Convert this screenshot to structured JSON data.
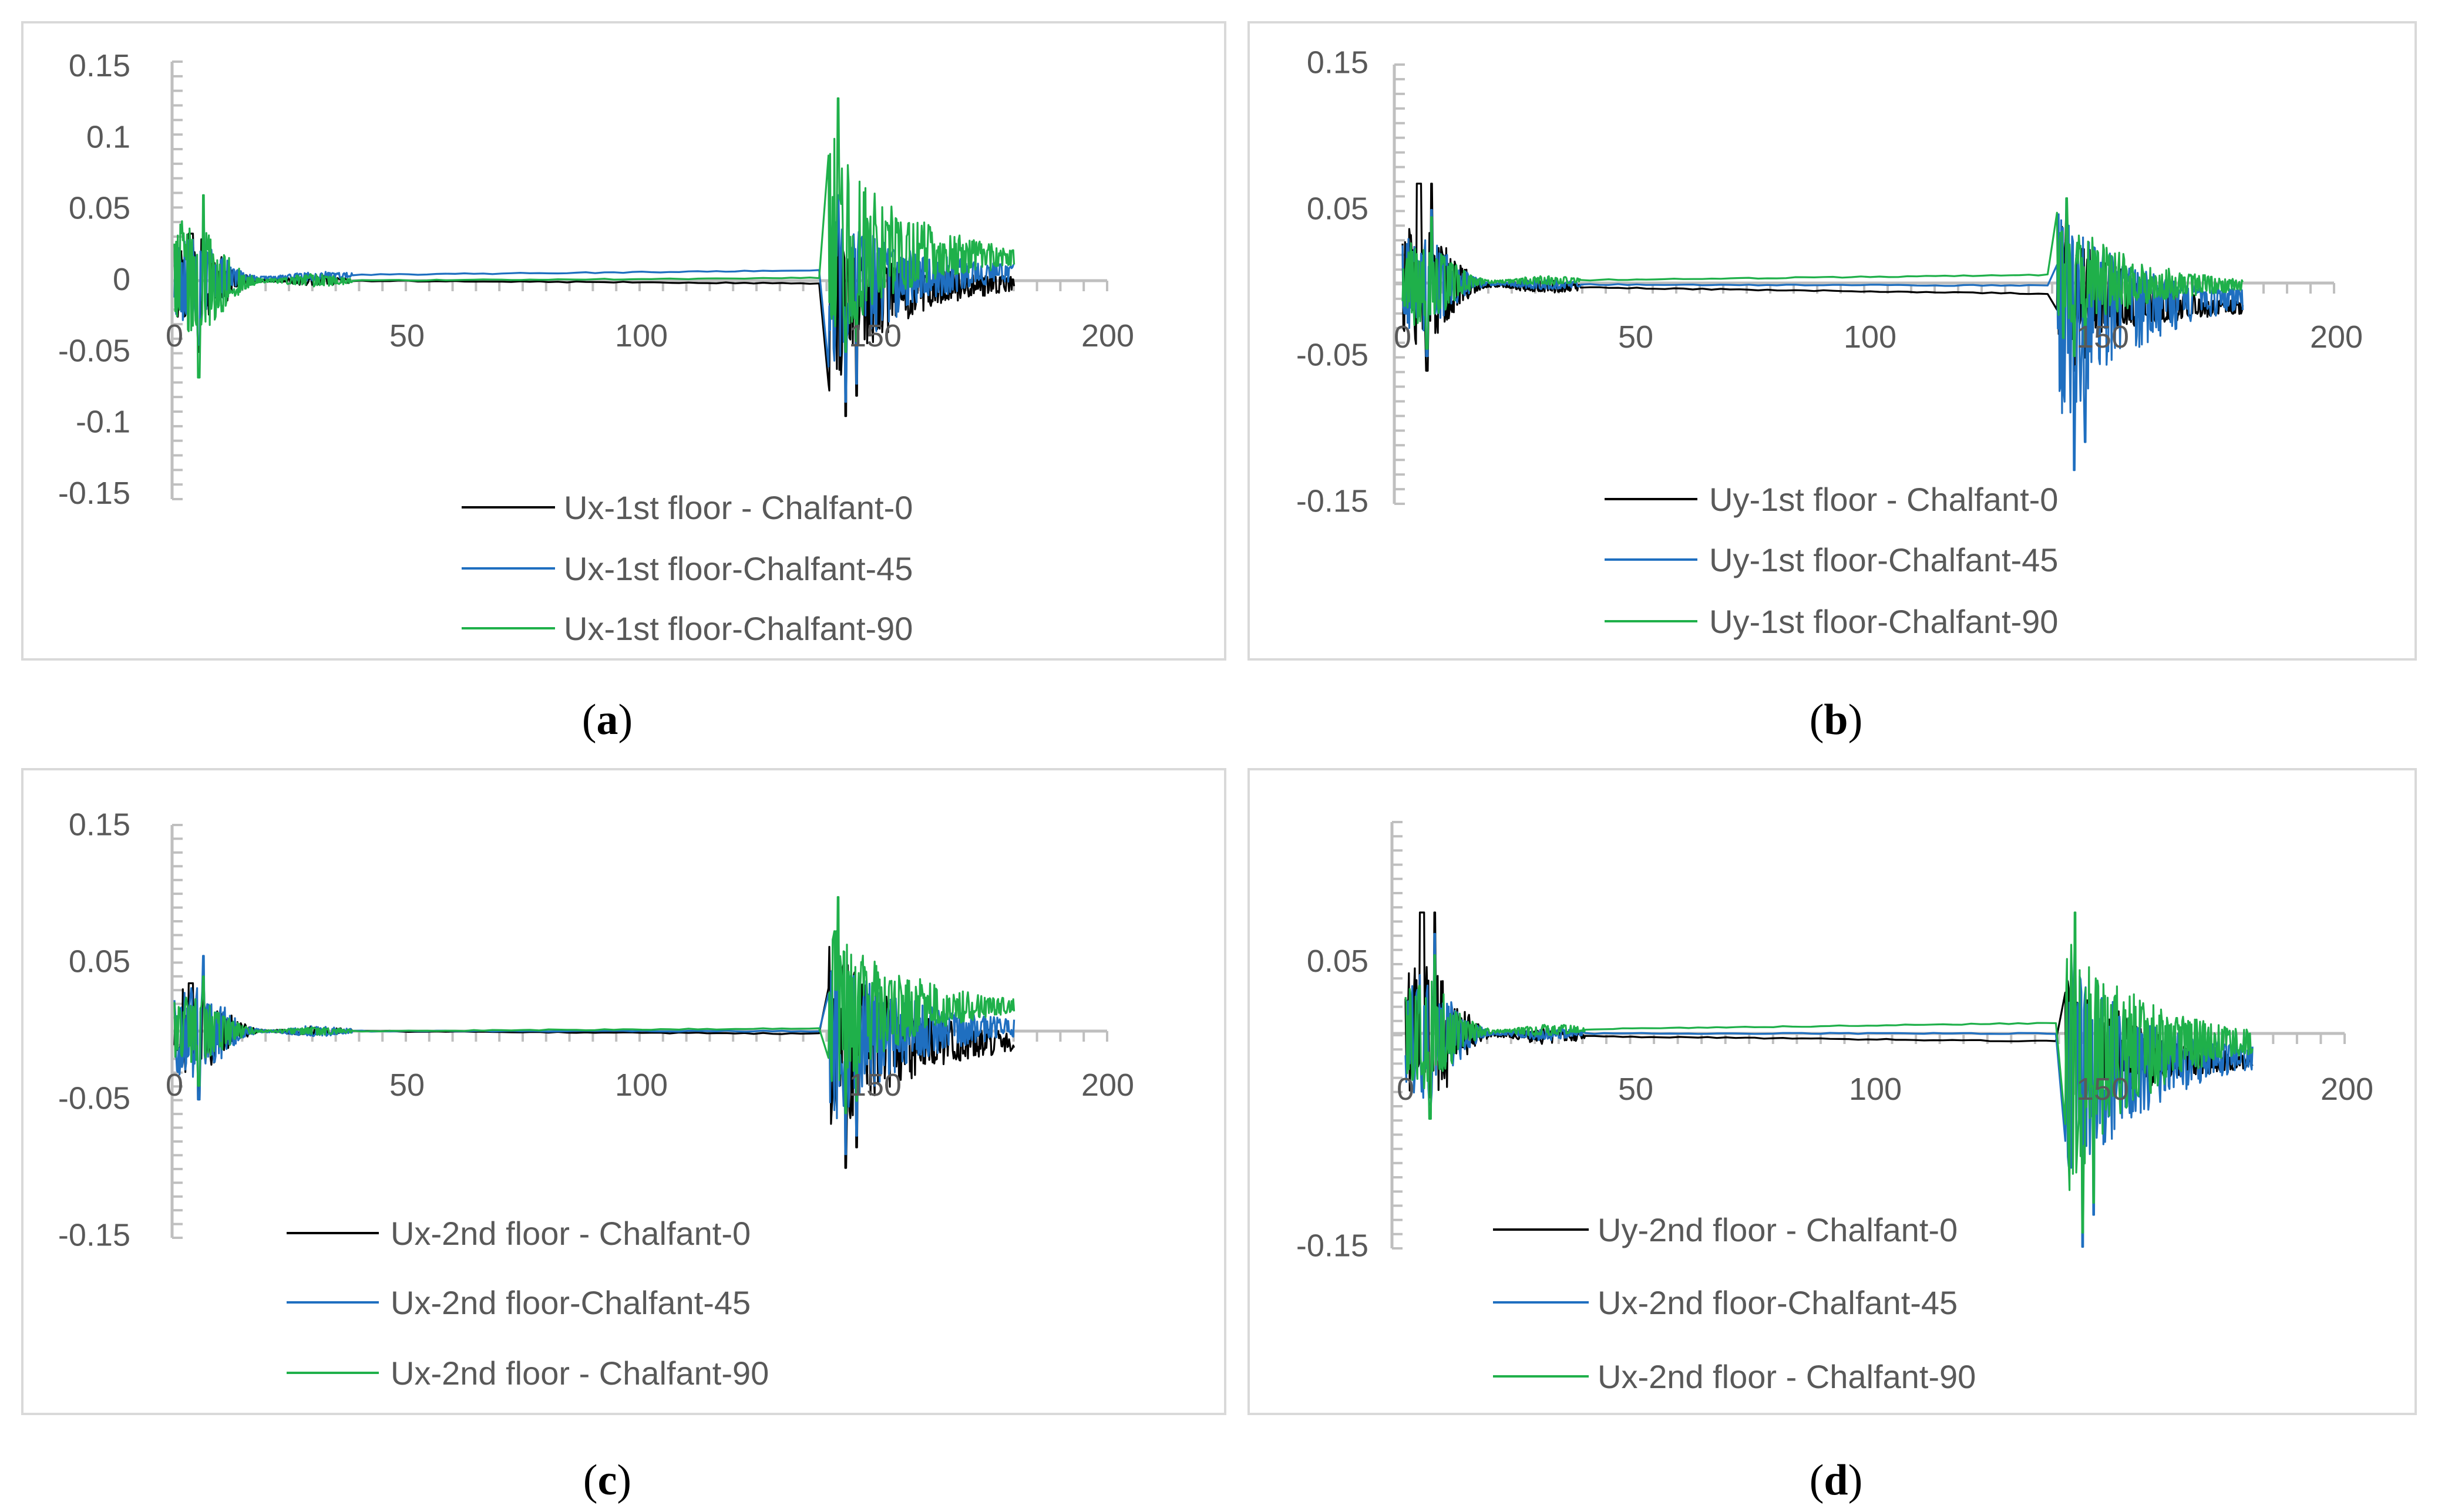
{
  "colors": {
    "black": "#000000",
    "blue": "#1f6fc0",
    "green": "#1fb04a",
    "axis": "#bfbfbf",
    "text": "#595959",
    "frame": "#d9d9d9"
  },
  "chart_data": [
    {
      "id": "a",
      "type": "line",
      "caption": {
        "open": "(",
        "letter": "a",
        "close": ")"
      },
      "xlim": [
        0,
        200
      ],
      "ylim": [
        -0.15,
        0.15
      ],
      "x_ticks": [
        "0",
        "50",
        "100",
        "150",
        "200"
      ],
      "x_tick_values": [
        0,
        50,
        100,
        150,
        200
      ],
      "y_ticks": [
        "0.15",
        "0.1",
        "0.05",
        "0",
        "-0.05",
        "-0.1",
        "-0.15"
      ],
      "y_tick_values": [
        0.15,
        0.1,
        0.05,
        0,
        -0.05,
        -0.1,
        -0.15
      ],
      "series": [
        {
          "name": "Ux-1st floor - Chalfant-0",
          "color": "#000000",
          "x_end": 180,
          "burst1": {
            "start": 0,
            "end": 38,
            "peak_pos": 0.033,
            "peak_neg": -0.05
          },
          "plateau": 0.0,
          "burst2": {
            "start": 140,
            "end": 180,
            "peak_pos": 0.035,
            "peak_neg": -0.095
          },
          "tail": 0.0
        },
        {
          "name": "Ux-1st floor-Chalfant-45",
          "color": "#1f6fc0",
          "x_end": 180,
          "burst1": {
            "start": 0,
            "end": 38,
            "peak_pos": 0.045,
            "peak_neg": -0.045
          },
          "plateau": 0.004,
          "burst2": {
            "start": 140,
            "end": 180,
            "peak_pos": 0.06,
            "peak_neg": -0.085
          },
          "tail": 0.007
        },
        {
          "name": "Ux-1st floor-Chalfant-90",
          "color": "#1fb04a",
          "x_end": 180,
          "burst1": {
            "start": 0,
            "end": 38,
            "peak_pos": 0.06,
            "peak_neg": -0.068
          },
          "plateau": 0.0,
          "burst2": {
            "start": 140,
            "end": 180,
            "peak_pos": 0.128,
            "peak_neg": -0.05
          },
          "tail": 0.014
        }
      ]
    },
    {
      "id": "b",
      "type": "line",
      "caption": {
        "open": "(",
        "letter": "b",
        "close": ")"
      },
      "xlim": [
        0,
        200
      ],
      "ylim": [
        -0.15,
        0.15
      ],
      "x_ticks": [
        "0",
        "50",
        "100",
        "150",
        "200"
      ],
      "x_tick_values": [
        0,
        50,
        100,
        150,
        200
      ],
      "y_ticks": [
        "0.15",
        "0.05",
        "-0.05",
        "-0.15"
      ],
      "y_tick_values": [
        0.15,
        0.05,
        -0.05,
        -0.15
      ],
      "series": [
        {
          "name": "Uy-1st floor - Chalfant-0",
          "color": "#000000",
          "x_end": 180,
          "burst1": {
            "start": 0,
            "end": 38,
            "peak_pos": 0.068,
            "peak_neg": -0.06
          },
          "plateau": -0.003,
          "burst2": {
            "start": 140,
            "end": 180,
            "peak_pos": 0.05,
            "peak_neg": -0.06
          },
          "tail": -0.018
        },
        {
          "name": "Uy-1st floor-Chalfant-45",
          "color": "#1f6fc0",
          "x_end": 180,
          "burst1": {
            "start": 0,
            "end": 38,
            "peak_pos": 0.05,
            "peak_neg": -0.05
          },
          "plateau": -0.001,
          "burst2": {
            "start": 140,
            "end": 180,
            "peak_pos": 0.058,
            "peak_neg": -0.128
          },
          "tail": -0.01
        },
        {
          "name": "Uy-1st floor-Chalfant-90",
          "color": "#1fb04a",
          "x_end": 180,
          "burst1": {
            "start": 0,
            "end": 38,
            "peak_pos": 0.045,
            "peak_neg": -0.045
          },
          "plateau": 0.002,
          "burst2": {
            "start": 140,
            "end": 180,
            "peak_pos": 0.058,
            "peak_neg": -0.05
          },
          "tail": -0.002
        }
      ]
    },
    {
      "id": "c",
      "type": "line",
      "caption": {
        "open": "(",
        "letter": "c",
        "close": ")"
      },
      "xlim": [
        0,
        200
      ],
      "ylim": [
        -0.15,
        0.15
      ],
      "x_ticks": [
        "0",
        "50",
        "100",
        "150",
        "200"
      ],
      "x_tick_values": [
        0,
        50,
        100,
        150,
        200
      ],
      "y_ticks": [
        "0.15",
        "0.05",
        "-0.05",
        "-0.15"
      ],
      "y_tick_values": [
        0.15,
        0.05,
        -0.05,
        -0.15
      ],
      "series": [
        {
          "name": "Ux-2nd floor - Chalfant-0",
          "color": "#000000",
          "x_end": 180,
          "burst1": {
            "start": 0,
            "end": 38,
            "peak_pos": 0.035,
            "peak_neg": -0.05
          },
          "plateau": 0.0,
          "burst2": {
            "start": 140,
            "end": 180,
            "peak_pos": 0.078,
            "peak_neg": -0.1
          },
          "tail": -0.008
        },
        {
          "name": "Ux-2nd floor-Chalfant-45",
          "color": "#1f6fc0",
          "x_end": 180,
          "burst1": {
            "start": 0,
            "end": 38,
            "peak_pos": 0.055,
            "peak_neg": -0.05
          },
          "plateau": 0.0,
          "burst2": {
            "start": 140,
            "end": 180,
            "peak_pos": 0.075,
            "peak_neg": -0.09
          },
          "tail": 0.003
        },
        {
          "name": "Ux-2nd floor - Chalfant-90",
          "color": "#1fb04a",
          "x_end": 180,
          "burst1": {
            "start": 0,
            "end": 38,
            "peak_pos": 0.04,
            "peak_neg": -0.04
          },
          "plateau": 0.0,
          "burst2": {
            "start": 140,
            "end": 180,
            "peak_pos": 0.098,
            "peak_neg": -0.06
          },
          "tail": 0.018
        }
      ]
    },
    {
      "id": "d",
      "type": "line",
      "caption": {
        "open": "(",
        "letter": "d",
        "close": ")"
      },
      "xlim": [
        0,
        200
      ],
      "ylim": [
        -0.15,
        0.15
      ],
      "x_ticks": [
        "0",
        "50",
        "100",
        "150",
        "200"
      ],
      "x_tick_values": [
        0,
        50,
        100,
        150,
        200
      ],
      "y_ticks": [
        "0.05",
        "-0.15"
      ],
      "y_tick_values": [
        0.05,
        -0.15
      ],
      "series": [
        {
          "name": "Uy-2nd floor - Chalfant-0",
          "color": "#000000",
          "x_end": 180,
          "burst1": {
            "start": 0,
            "end": 38,
            "peak_pos": 0.085,
            "peak_neg": -0.045
          },
          "plateau": -0.002,
          "burst2": {
            "start": 140,
            "end": 180,
            "peak_pos": 0.055,
            "peak_neg": -0.08
          },
          "tail": -0.02
        },
        {
          "name": "Ux-2nd floor-Chalfant-45",
          "color": "#1f6fc0",
          "x_end": 180,
          "burst1": {
            "start": 0,
            "end": 38,
            "peak_pos": 0.07,
            "peak_neg": -0.05
          },
          "plateau": 0.0,
          "burst2": {
            "start": 140,
            "end": 180,
            "peak_pos": 0.06,
            "peak_neg": -0.15
          },
          "tail": -0.015
        },
        {
          "name": "Ux-2nd floor - Chalfant-90",
          "color": "#1fb04a",
          "x_end": 180,
          "burst1": {
            "start": 0,
            "end": 38,
            "peak_pos": 0.055,
            "peak_neg": -0.06
          },
          "plateau": 0.003,
          "burst2": {
            "start": 140,
            "end": 180,
            "peak_pos": 0.085,
            "peak_neg": -0.14
          },
          "tail": -0.004
        }
      ]
    }
  ]
}
